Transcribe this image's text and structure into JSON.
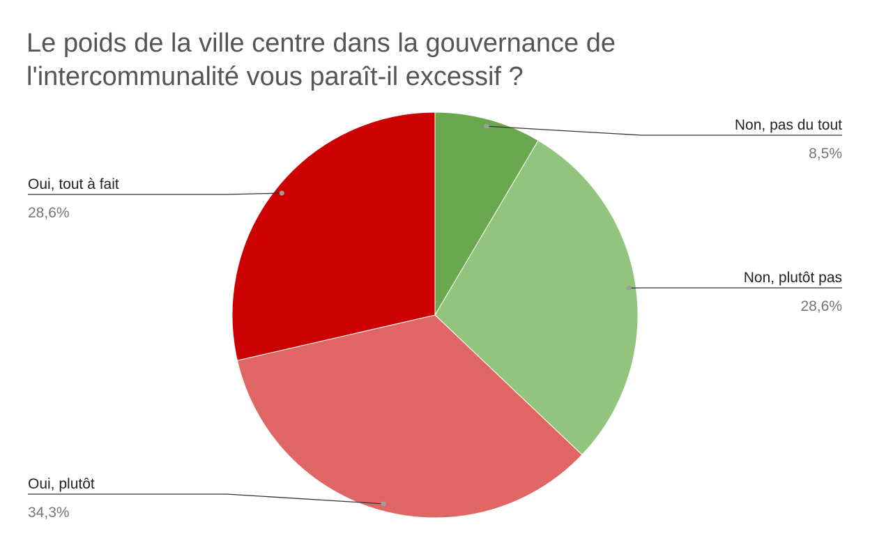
{
  "chart_data": {
    "type": "pie",
    "title": "Le poids de la ville centre dans la gouvernance de l'intercommunalité vous paraît-il excessif ?",
    "slices": [
      {
        "label": "Non, pas du tout",
        "value": 8.5,
        "value_label": "8,5%",
        "color": "#6aa84f"
      },
      {
        "label": "Non, plutôt pas",
        "value": 28.6,
        "value_label": "28,6%",
        "color": "#93c47d"
      },
      {
        "label": "Oui, plutôt",
        "value": 34.3,
        "value_label": "34,3%",
        "color": "#e06666"
      },
      {
        "label": "Oui, tout à fait",
        "value": 28.6,
        "value_label": "28,6%",
        "color": "#cc0000"
      }
    ],
    "start_angle": "12 o'clock",
    "direction": "clockwise",
    "labels": "outside, with leader lines"
  }
}
